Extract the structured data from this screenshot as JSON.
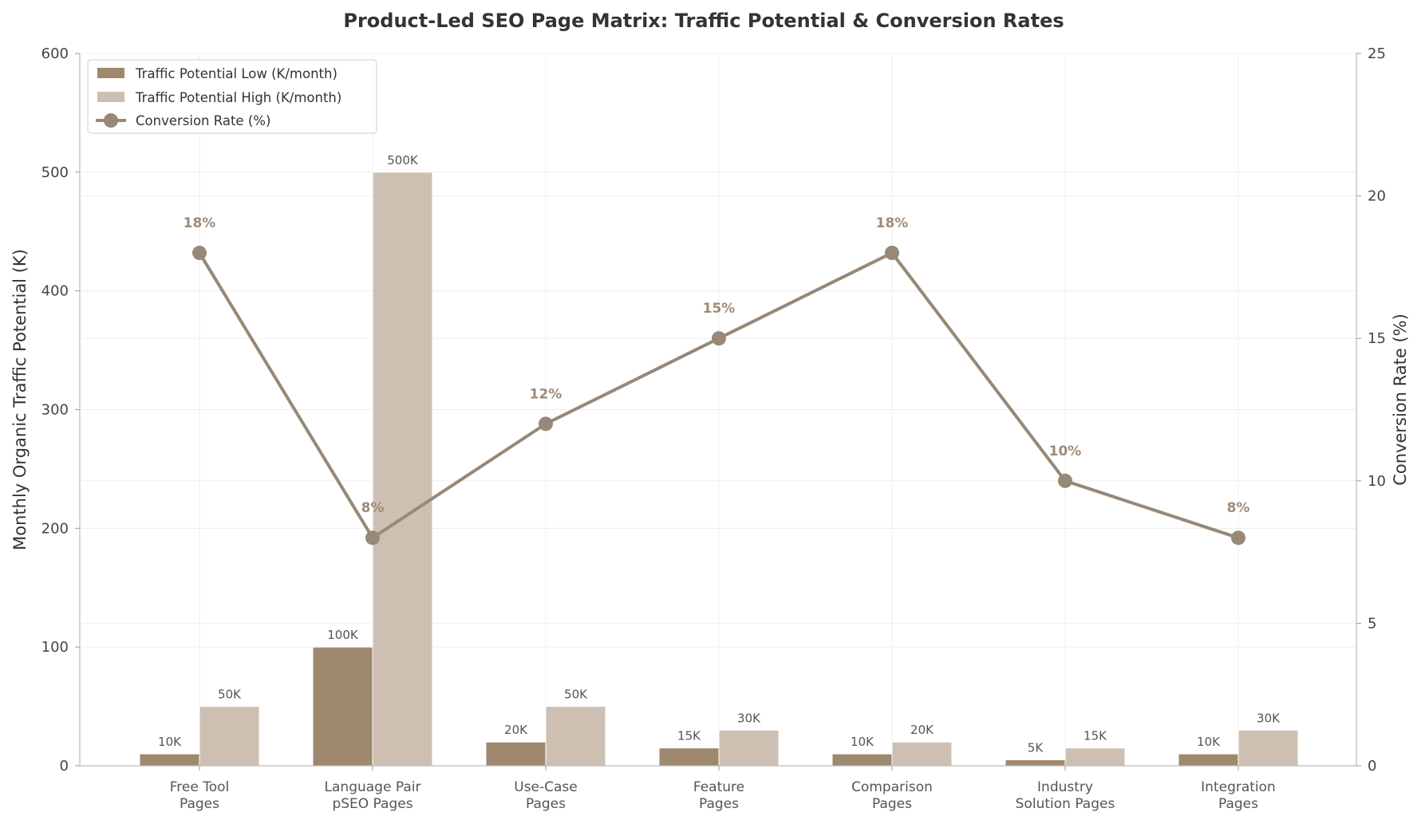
{
  "chart_data": {
    "type": "bar",
    "title": "Product-Led SEO Page Matrix: Traffic Potential & Conversion Rates",
    "xlabel": "",
    "ylabel": "Monthly Organic Traffic Potential (K)",
    "y2label": "Conversion Rate (%)",
    "ylim": [
      0,
      600
    ],
    "y2lim": [
      0,
      25
    ],
    "yticks": [
      "0",
      "100",
      "200",
      "300",
      "400",
      "500",
      "600"
    ],
    "y2ticks": [
      "0",
      "5",
      "10",
      "15",
      "20",
      "25"
    ],
    "grid": true,
    "legend_position": "top-left",
    "categories": [
      [
        "Free Tool",
        "Pages"
      ],
      [
        "Language Pair",
        "pSEO Pages"
      ],
      [
        "Use-Case",
        "Pages"
      ],
      [
        "Feature",
        "Pages"
      ],
      [
        "Comparison",
        "Pages"
      ],
      [
        "Industry",
        "Solution Pages"
      ],
      [
        "Integration",
        "Pages"
      ]
    ],
    "series": [
      {
        "name": "Traffic Potential Low (K/month)",
        "kind": "bar",
        "axis": "left",
        "color": "#9e886e",
        "values": [
          10,
          100,
          20,
          15,
          10,
          5,
          10
        ],
        "labels": [
          "10K",
          "100K",
          "20K",
          "15K",
          "10K",
          "5K",
          "10K"
        ]
      },
      {
        "name": "Traffic Potential High (K/month)",
        "kind": "bar",
        "axis": "left",
        "color": "#cdc0b2",
        "values": [
          50,
          500,
          50,
          30,
          20,
          15,
          30
        ],
        "labels": [
          "50K",
          "500K",
          "50K",
          "30K",
          "20K",
          "15K",
          "30K"
        ]
      },
      {
        "name": "Conversion Rate (%)",
        "kind": "line",
        "axis": "right",
        "color": "#978877",
        "values": [
          18,
          8,
          12,
          15,
          18,
          10,
          8
        ],
        "labels": [
          "18%",
          "8%",
          "12%",
          "15%",
          "18%",
          "10%",
          "8%"
        ]
      }
    ]
  }
}
